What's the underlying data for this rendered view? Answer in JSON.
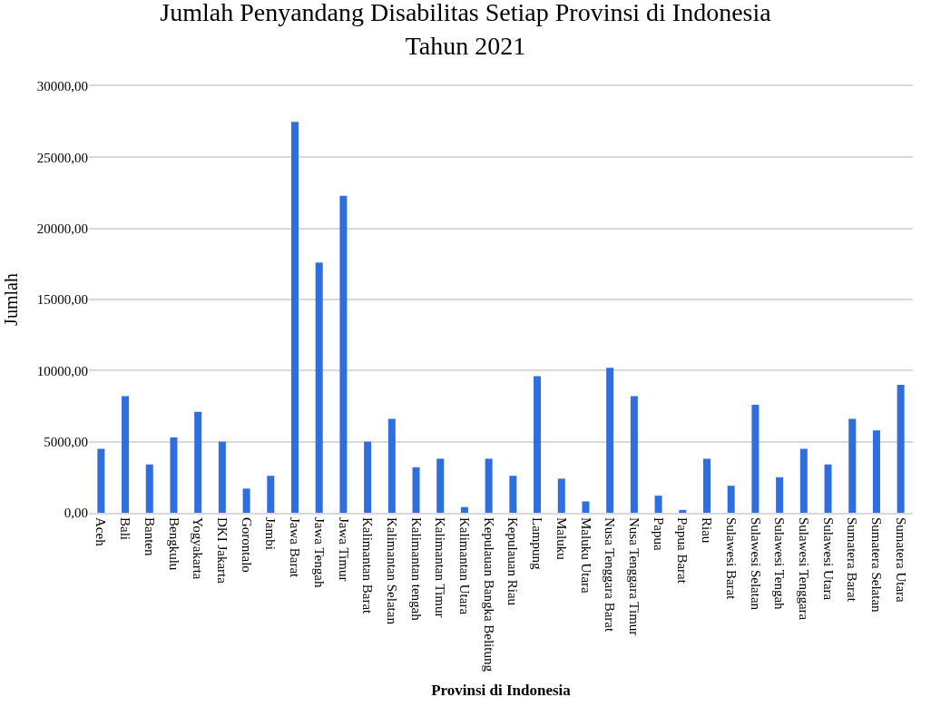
{
  "chart_data": {
    "type": "bar",
    "title": "Jumlah Penyandang Disabilitas Setiap Provinsi di Indonesia\nTahun 2021",
    "xlabel": "Provinsi di Indonesia",
    "ylabel": "Jumlah",
    "categories": [
      "Aceh",
      "Bali",
      "Banten",
      "Bengkulu",
      "Yogyakarta",
      "DKI Jakarta",
      "Gorontalo",
      "Jambi",
      "Jawa Barat",
      "Jawa Tengah",
      "Jawa Timur",
      "Kalimantan Barat",
      "Kalimantan Selatan",
      "Kalimantan tengah",
      "Kalimantan Timur",
      "Kalimantan Utara",
      "Kepulauan Bangka Belitung",
      "Kepulauan Riau",
      "Lampung",
      "Maluku",
      "Maluku Utara",
      "Nusa Tenggara Barat",
      "Nusa Tenggara Timur",
      "Papua",
      "Papua Barat",
      "Riau",
      "Sulawesi Barat",
      "Sulawesi Selatan",
      "Sulawesi Tengah",
      "Sulawesi Tenggara",
      "Sulawesi Utara",
      "Sumatera Barat",
      "Sumatera Selatan",
      "Sumatera Utara"
    ],
    "values": [
      4500,
      8200,
      3400,
      5300,
      7100,
      5000,
      1700,
      2600,
      27500,
      17600,
      22300,
      5000,
      6600,
      3200,
      3800,
      400,
      3800,
      2600,
      9600,
      2400,
      800,
      10200,
      8200,
      1200,
      200,
      3800,
      1900,
      7600,
      2500,
      4500,
      3400,
      6600,
      5800,
      9000
    ],
    "color": "#2f6ede",
    "ylim": [
      0,
      30000
    ],
    "yticks": [
      {
        "value": 0,
        "label": "0,00"
      },
      {
        "value": 5000,
        "label": "5000,00"
      },
      {
        "value": 10000,
        "label": "10000,00"
      },
      {
        "value": 15000,
        "label": "15000,00"
      },
      {
        "value": 20000,
        "label": "20000,00"
      },
      {
        "value": 25000,
        "label": "25000,00"
      },
      {
        "value": 30000,
        "label": "30000,00"
      }
    ],
    "grid": "y"
  }
}
